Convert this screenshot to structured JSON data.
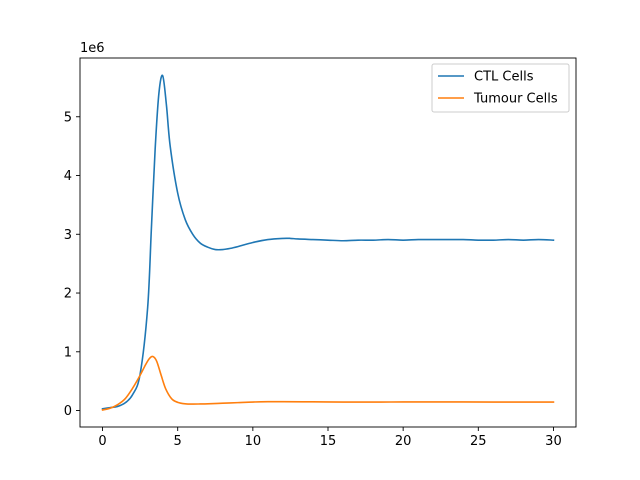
{
  "chart_data": {
    "type": "line",
    "title": "",
    "xlabel": "",
    "ylabel": "",
    "offset_text": "1e6",
    "xlim": [
      -1.5,
      31.5
    ],
    "ylim": [
      -0.28,
      6.0
    ],
    "y_unit_scale": 1000000,
    "xticks": [
      0,
      5,
      10,
      15,
      20,
      25,
      30
    ],
    "yticks": [
      0,
      1,
      2,
      3,
      4,
      5
    ],
    "grid": false,
    "legend_position": "top-right",
    "series": [
      {
        "name": "CTL Cells",
        "color": "#1f77b4",
        "x": [
          0,
          0.5,
          1,
          1.5,
          2,
          2.5,
          3,
          3.25,
          3.5,
          3.75,
          4,
          4.25,
          4.5,
          5,
          5.5,
          6,
          6.5,
          7,
          7.5,
          8,
          8.5,
          9,
          10,
          11,
          12,
          12.5,
          13,
          14,
          15,
          16,
          17,
          18,
          19,
          20,
          21,
          22,
          23,
          24,
          25,
          26,
          27,
          28,
          29,
          30
        ],
        "y": [
          0.03,
          0.05,
          0.07,
          0.13,
          0.27,
          0.62,
          1.75,
          3.1,
          4.45,
          5.4,
          5.7,
          5.2,
          4.5,
          3.7,
          3.25,
          3.0,
          2.85,
          2.78,
          2.74,
          2.74,
          2.76,
          2.79,
          2.86,
          2.91,
          2.93,
          2.93,
          2.92,
          2.91,
          2.9,
          2.89,
          2.9,
          2.9,
          2.91,
          2.9,
          2.91,
          2.91,
          2.91,
          2.91,
          2.9,
          2.9,
          2.91,
          2.9,
          2.91,
          2.9
        ]
      },
      {
        "name": "Tumour Cells",
        "color": "#ff7f0e",
        "x": [
          0,
          0.5,
          1,
          1.5,
          2,
          2.5,
          2.8,
          3.1,
          3.35,
          3.6,
          3.9,
          4.2,
          4.6,
          5,
          5.5,
          6,
          6.5,
          7,
          8,
          9,
          10,
          11,
          12,
          14,
          16,
          18,
          20,
          22,
          24,
          26,
          28,
          30
        ],
        "y": [
          0.01,
          0.04,
          0.1,
          0.2,
          0.38,
          0.6,
          0.75,
          0.88,
          0.92,
          0.84,
          0.6,
          0.37,
          0.2,
          0.14,
          0.115,
          0.11,
          0.112,
          0.115,
          0.125,
          0.135,
          0.145,
          0.15,
          0.15,
          0.148,
          0.145,
          0.145,
          0.146,
          0.147,
          0.146,
          0.145,
          0.145,
          0.145
        ]
      }
    ]
  }
}
